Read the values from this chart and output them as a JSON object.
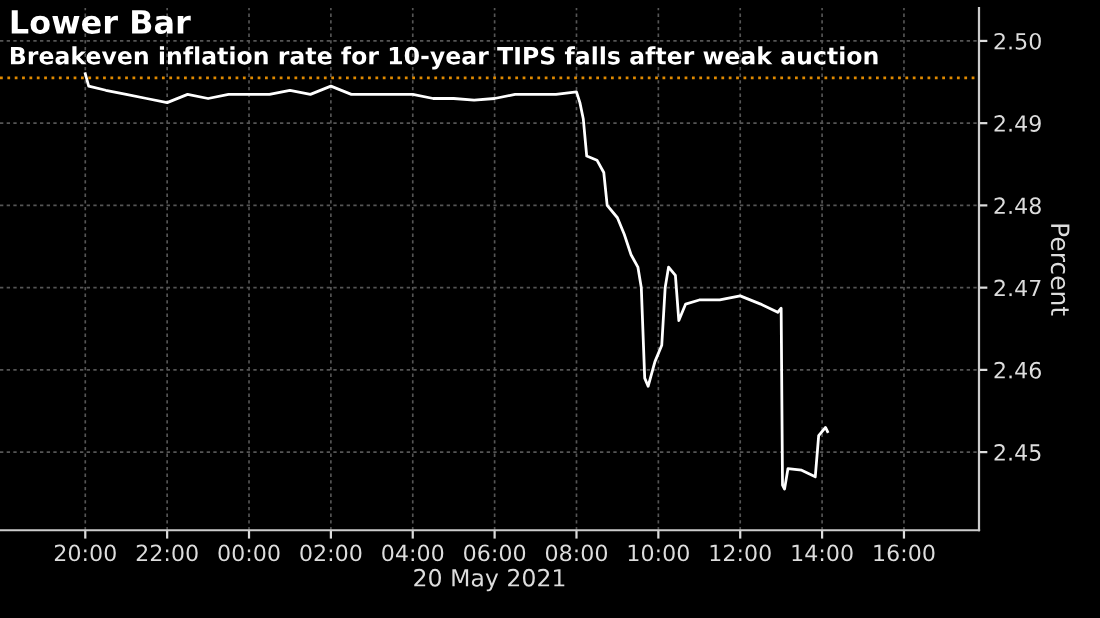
{
  "chart_data": {
    "type": "line",
    "title": "Lower Bar",
    "subtitle": "Breakeven inflation rate for 10-year TIPS falls after weak auction",
    "xlabel": "20 May 2021",
    "ylabel": "Percent",
    "x": [
      "2021-05-19T20:00",
      "2021-05-19T20:05",
      "2021-05-19T20:30",
      "2021-05-19T21:00",
      "2021-05-19T21:30",
      "2021-05-19T22:00",
      "2021-05-19T22:30",
      "2021-05-19T23:00",
      "2021-05-19T23:30",
      "2021-05-20T00:00",
      "2021-05-20T00:30",
      "2021-05-20T01:00",
      "2021-05-20T01:30",
      "2021-05-20T02:00",
      "2021-05-20T02:30",
      "2021-05-20T03:00",
      "2021-05-20T03:30",
      "2021-05-20T04:00",
      "2021-05-20T04:30",
      "2021-05-20T05:00",
      "2021-05-20T05:30",
      "2021-05-20T06:00",
      "2021-05-20T06:30",
      "2021-05-20T07:00",
      "2021-05-20T07:30",
      "2021-05-20T08:00",
      "2021-05-20T08:05",
      "2021-05-20T08:10",
      "2021-05-20T08:15",
      "2021-05-20T08:30",
      "2021-05-20T08:40",
      "2021-05-20T08:45",
      "2021-05-20T09:00",
      "2021-05-20T09:10",
      "2021-05-20T09:20",
      "2021-05-20T09:30",
      "2021-05-20T09:35",
      "2021-05-20T09:40",
      "2021-05-20T09:45",
      "2021-05-20T09:55",
      "2021-05-20T10:05",
      "2021-05-20T10:10",
      "2021-05-20T10:15",
      "2021-05-20T10:25",
      "2021-05-20T10:30",
      "2021-05-20T10:40",
      "2021-05-20T11:00",
      "2021-05-20T11:30",
      "2021-05-20T12:00",
      "2021-05-20T12:30",
      "2021-05-20T12:55",
      "2021-05-20T13:00",
      "2021-05-20T13:02",
      "2021-05-20T13:05",
      "2021-05-20T13:10",
      "2021-05-20T13:30",
      "2021-05-20T13:50",
      "2021-05-20T13:55",
      "2021-05-20T14:05",
      "2021-05-20T14:08"
    ],
    "series": [
      {
        "color": "#ffffff",
        "values": [
          2.496,
          2.4945,
          2.494,
          2.4935,
          2.493,
          2.4925,
          2.4935,
          2.493,
          2.4935,
          2.4935,
          2.4935,
          2.494,
          2.4935,
          2.4945,
          2.4935,
          2.4935,
          2.4935,
          2.4935,
          2.493,
          2.493,
          2.4928,
          2.493,
          2.4935,
          2.4935,
          2.4935,
          2.4938,
          2.4925,
          2.4905,
          2.486,
          2.4855,
          2.484,
          2.48,
          2.4785,
          2.4765,
          2.474,
          2.4725,
          2.47,
          2.459,
          2.458,
          2.461,
          2.463,
          2.47,
          2.4725,
          2.4715,
          2.466,
          2.468,
          2.4685,
          2.4685,
          2.469,
          2.468,
          2.467,
          2.4675,
          2.446,
          2.4455,
          2.448,
          2.4478,
          2.447,
          2.452,
          2.453,
          2.4525
        ]
      }
    ],
    "xlim": [
      "2021-05-19T17:55",
      "2021-05-20T17:50"
    ],
    "xticks": [
      {
        "value": "2021-05-19T20:00",
        "label": "20:00"
      },
      {
        "value": "2021-05-19T22:00",
        "label": "22:00"
      },
      {
        "value": "2021-05-20T00:00",
        "label": "00:00"
      },
      {
        "value": "2021-05-20T02:00",
        "label": "02:00"
      },
      {
        "value": "2021-05-20T04:00",
        "label": "04:00"
      },
      {
        "value": "2021-05-20T06:00",
        "label": "06:00"
      },
      {
        "value": "2021-05-20T08:00",
        "label": "08:00"
      },
      {
        "value": "2021-05-20T10:00",
        "label": "10:00"
      },
      {
        "value": "2021-05-20T12:00",
        "label": "12:00"
      },
      {
        "value": "2021-05-20T14:00",
        "label": "14:00"
      },
      {
        "value": "2021-05-20T16:00",
        "label": "16:00"
      }
    ],
    "ylim": [
      2.4405,
      2.504
    ],
    "yticks": [
      {
        "value": 2.45,
        "label": "2.45"
      },
      {
        "value": 2.46,
        "label": "2.46"
      },
      {
        "value": 2.47,
        "label": "2.47"
      },
      {
        "value": 2.48,
        "label": "2.48"
      },
      {
        "value": 2.49,
        "label": "2.49"
      },
      {
        "value": 2.5,
        "label": "2.50"
      }
    ],
    "ref_lines": [
      {
        "axis": "y",
        "value": 2.4955,
        "color": "#e08a00",
        "line_style": "dotted"
      }
    ],
    "grid": true,
    "legend": false
  }
}
